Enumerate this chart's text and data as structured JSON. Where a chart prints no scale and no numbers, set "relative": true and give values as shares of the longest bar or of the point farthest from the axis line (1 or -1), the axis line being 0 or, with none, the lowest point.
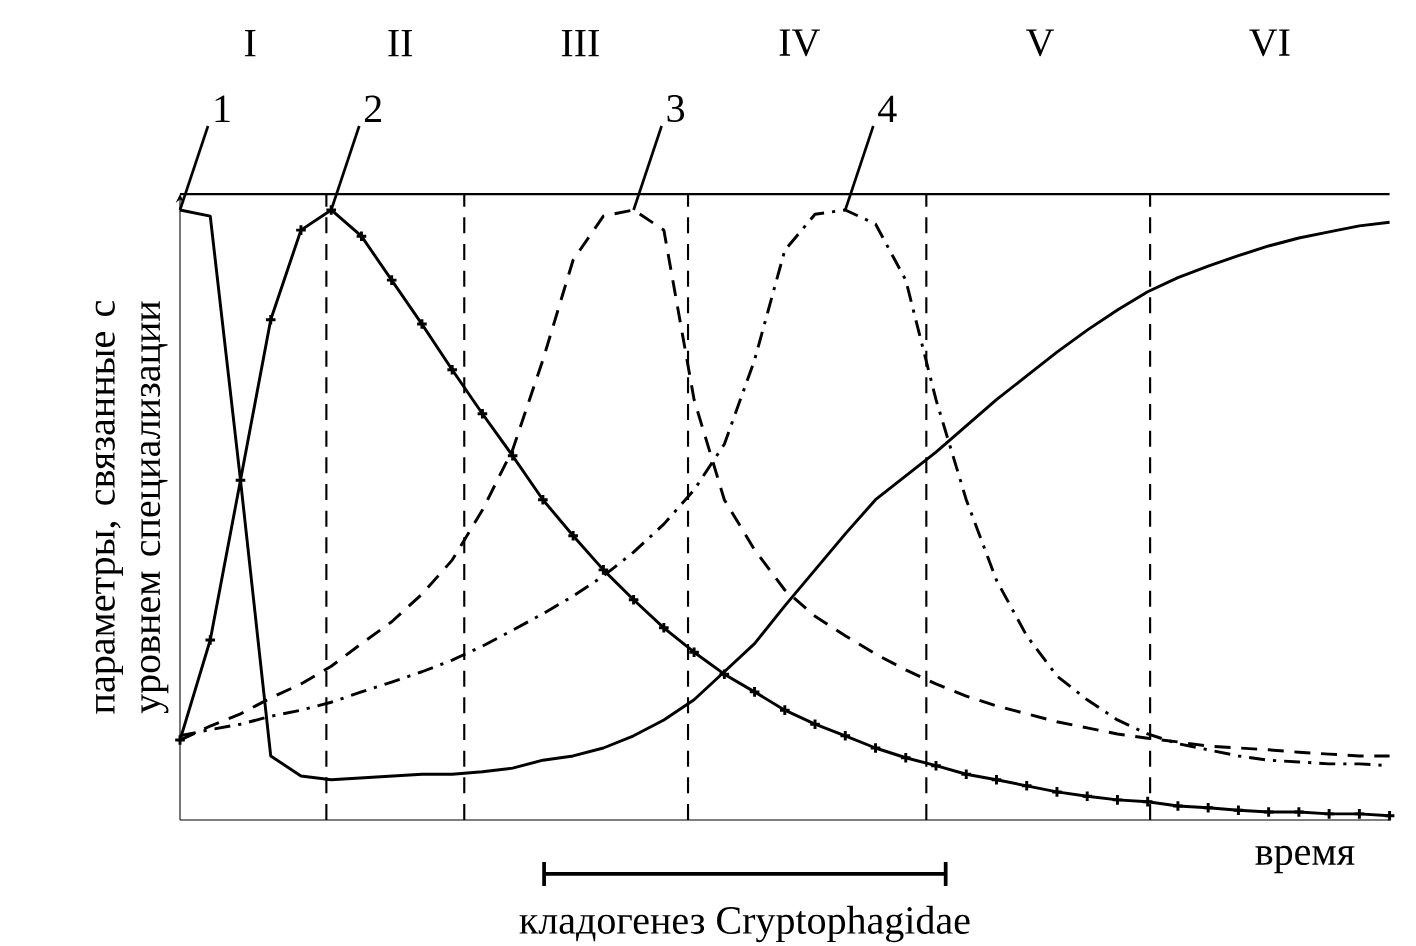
{
  "chart_data": {
    "type": "line",
    "relative": true,
    "annotations": [
      "I",
      "II",
      "III",
      "IV",
      "V",
      "VI",
      "кладогенез Cryptophagidae"
    ],
    "xlabel": "время",
    "ylabel": "параметры, связанные с уровнем специализации",
    "categories": [
      null,
      null,
      null,
      null,
      null,
      null,
      null,
      null,
      null,
      null,
      null,
      null,
      null,
      null,
      null,
      null,
      null,
      null,
      null,
      null,
      null,
      null,
      null,
      null,
      null,
      null,
      null,
      null,
      null,
      null,
      null,
      null,
      null,
      null,
      null,
      null,
      null,
      null,
      null,
      null,
      null
    ],
    "series": [
      {
        "name": "1",
        "color": "#000000",
        "line_style": "solid",
        "marker": "none",
        "values": [
          1.0,
          0.99,
          0.557,
          0.105,
          0.072,
          0.066,
          0.069,
          0.072,
          0.075,
          0.075,
          0.079,
          0.085,
          0.098,
          0.105,
          0.118,
          0.138,
          0.164,
          0.197,
          0.243,
          0.289,
          0.351,
          0.41,
          0.469,
          0.525,
          0.564,
          0.603,
          0.646,
          0.689,
          0.728,
          0.767,
          0.803,
          0.836,
          0.866,
          0.889,
          0.908,
          0.925,
          0.941,
          0.954,
          0.964,
          0.974,
          0.98
        ]
      },
      {
        "name": "2",
        "color": "#000000",
        "line_style": "solid",
        "marker": "cross",
        "values": [
          0.131,
          0.295,
          0.557,
          0.82,
          0.967,
          1.0,
          0.957,
          0.885,
          0.813,
          0.738,
          0.666,
          0.597,
          0.525,
          0.466,
          0.41,
          0.361,
          0.315,
          0.275,
          0.239,
          0.21,
          0.18,
          0.157,
          0.138,
          0.118,
          0.102,
          0.089,
          0.075,
          0.066,
          0.056,
          0.046,
          0.039,
          0.033,
          0.03,
          0.023,
          0.02,
          0.016,
          0.013,
          0.013,
          0.01,
          0.01,
          0.007
        ]
      },
      {
        "name": "3",
        "color": "#000000",
        "line_style": "dashed",
        "marker": "none",
        "values": [
          0.131,
          0.154,
          0.174,
          0.2,
          0.223,
          0.252,
          0.289,
          0.325,
          0.37,
          0.426,
          0.508,
          0.607,
          0.754,
          0.918,
          0.99,
          1.0,
          0.967,
          0.689,
          0.525,
          0.443,
          0.377,
          0.334,
          0.302,
          0.272,
          0.246,
          0.223,
          0.203,
          0.187,
          0.174,
          0.161,
          0.151,
          0.141,
          0.134,
          0.128,
          0.121,
          0.118,
          0.115,
          0.111,
          0.108,
          0.105,
          0.105
        ]
      },
      {
        "name": "4",
        "color": "#000000",
        "line_style": "dashdot",
        "marker": "none",
        "values": [
          0.138,
          0.148,
          0.157,
          0.17,
          0.18,
          0.193,
          0.21,
          0.226,
          0.243,
          0.262,
          0.285,
          0.311,
          0.338,
          0.367,
          0.4,
          0.439,
          0.485,
          0.541,
          0.616,
          0.754,
          0.934,
          0.993,
          1.0,
          0.977,
          0.885,
          0.689,
          0.525,
          0.393,
          0.302,
          0.236,
          0.197,
          0.164,
          0.141,
          0.125,
          0.115,
          0.105,
          0.098,
          0.095,
          0.092,
          0.092,
          0.089
        ]
      }
    ],
    "ref_lines": [
      {
        "axis": "y",
        "value": 1.026,
        "line_style": "solid"
      }
    ]
  }
}
